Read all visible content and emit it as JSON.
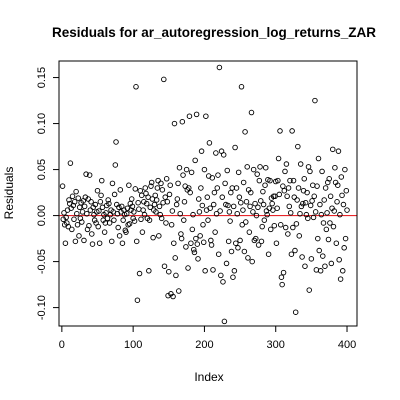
{
  "chart_data": {
    "type": "scatter",
    "title": "Residuals for ar_autoregression_log_returns_ZAR",
    "xlabel": "Index",
    "ylabel": "Residuals",
    "xlim": [
      -4,
      414
    ],
    "ylim": [
      -0.12,
      0.168
    ],
    "x_ticks": [
      0,
      100,
      200,
      300,
      400
    ],
    "y_ticks": [
      -0.1,
      -0.05,
      0.0,
      0.05,
      0.1,
      0.15
    ],
    "x_tick_labels": [
      "0",
      "100",
      "200",
      "300",
      "400"
    ],
    "y_tick_labels": [
      "-0.10",
      "-0.05",
      "0.00",
      "0.05",
      "0.10",
      "0.15"
    ],
    "grid": false,
    "reference_line": {
      "y": 0,
      "color": "#e8262b"
    },
    "marker": {
      "shape": "open-circle",
      "color": "#000000"
    },
    "points": [
      [
        1,
        0.032
      ],
      [
        2,
        -0.004
      ],
      [
        3,
        0.003
      ],
      [
        4,
        -0.01
      ],
      [
        5,
        -0.03
      ],
      [
        6,
        -0.002
      ],
      [
        7,
        -0.008
      ],
      [
        8,
        0.006
      ],
      [
        9,
        -0.012
      ],
      [
        10,
        0.017
      ],
      [
        11,
        0.013
      ],
      [
        12,
        0.057
      ],
      [
        13,
        0.008
      ],
      [
        14,
        -0.015
      ],
      [
        15,
        0.021
      ],
      [
        16,
        0.011
      ],
      [
        17,
        -0.004
      ],
      [
        18,
        0.015
      ],
      [
        19,
        -0.028
      ],
      [
        20,
        0.026
      ],
      [
        21,
        0.002
      ],
      [
        22,
        -0.01
      ],
      [
        23,
        0.019
      ],
      [
        24,
        -0.022
      ],
      [
        25,
        0.009
      ],
      [
        26,
        -0.003
      ],
      [
        27,
        0.014
      ],
      [
        28,
        -0.007
      ],
      [
        29,
        0.004
      ],
      [
        30,
        0.016
      ],
      [
        31,
        -0.027
      ],
      [
        32,
        0.01
      ],
      [
        33,
        0.02
      ],
      [
        34,
        0.045
      ],
      [
        35,
        0.002
      ],
      [
        36,
        -0.015
      ],
      [
        37,
        0.018
      ],
      [
        38,
        -0.011
      ],
      [
        39,
        0.044
      ],
      [
        40,
        0.006
      ],
      [
        41,
        0.015
      ],
      [
        42,
        -0.02
      ],
      [
        43,
        -0.031
      ],
      [
        44,
        0.009
      ],
      [
        45,
        0.001
      ],
      [
        46,
        -0.005
      ],
      [
        47,
        0.012
      ],
      [
        48,
        -0.008
      ],
      [
        49,
        0.004
      ],
      [
        50,
        0.027
      ],
      [
        51,
        -0.012
      ],
      [
        52,
        0.005
      ],
      [
        53,
        -0.03
      ],
      [
        54,
        0.015
      ],
      [
        55,
        0.022
      ],
      [
        56,
        0.038
      ],
      [
        57,
        0.009
      ],
      [
        58,
        -0.005
      ],
      [
        59,
        0.001
      ],
      [
        60,
        -0.018
      ],
      [
        61,
        -0.008
      ],
      [
        62,
        0.003
      ],
      [
        63,
        0.011
      ],
      [
        64,
        -0.003
      ],
      [
        65,
        0.017
      ],
      [
        66,
        0.013
      ],
      [
        67,
        -0.008
      ],
      [
        68,
        0.001
      ],
      [
        69,
        0.006
      ],
      [
        70,
        -0.028
      ],
      [
        71,
        0.035
      ],
      [
        72,
        0.004
      ],
      [
        73,
        -0.005
      ],
      [
        74,
        0.023
      ],
      [
        75,
        0.055
      ],
      [
        76,
        0.08
      ],
      [
        77,
        0.012
      ],
      [
        78,
        0.002
      ],
      [
        79,
        -0.013
      ],
      [
        80,
        0.009
      ],
      [
        81,
        -0.022
      ],
      [
        82,
        0.028
      ],
      [
        83,
        0.004
      ],
      [
        84,
        0.01
      ],
      [
        85,
        -0.03
      ],
      [
        86,
        -0.005
      ],
      [
        87,
        0.006
      ],
      [
        88,
        0.001
      ],
      [
        89,
        -0.016
      ],
      [
        90,
        -0.018
      ],
      [
        91,
        0.002
      ],
      [
        92,
        0.008
      ],
      [
        93,
        -0.01
      ],
      [
        94,
        0.033
      ],
      [
        95,
        -0.009
      ],
      [
        96,
        0.013
      ],
      [
        97,
        0.006
      ],
      [
        98,
        0.018
      ],
      [
        99,
        0.01
      ],
      [
        100,
        -0.003
      ],
      [
        101,
        0.004
      ],
      [
        102,
        -0.006
      ],
      [
        103,
        0.029
      ],
      [
        104,
        0.14
      ],
      [
        105,
        -0.028
      ],
      [
        106,
        -0.092
      ],
      [
        107,
        0.014
      ],
      [
        108,
        0.007
      ],
      [
        109,
        -0.063
      ],
      [
        110,
        0.027
      ],
      [
        111,
        -0.004
      ],
      [
        112,
        0.022
      ],
      [
        113,
        -0.018
      ],
      [
        114,
        0.006
      ],
      [
        115,
        0.015
      ],
      [
        116,
        0.001
      ],
      [
        117,
        0.03
      ],
      [
        118,
        0.024
      ],
      [
        119,
        0.013
      ],
      [
        120,
        -0.003
      ],
      [
        121,
        0.02
      ],
      [
        122,
        -0.06
      ],
      [
        123,
        -0.005
      ],
      [
        124,
        0.009
      ],
      [
        125,
        0.032
      ],
      [
        126,
        0.036
      ],
      [
        127,
        0.018
      ],
      [
        128,
        -0.024
      ],
      [
        129,
        0.006
      ],
      [
        130,
        0.012
      ],
      [
        131,
        0.022
      ],
      [
        132,
        0.004
      ],
      [
        133,
        0.017
      ],
      [
        134,
        0.03
      ],
      [
        135,
        0.038
      ],
      [
        136,
        -0.022
      ],
      [
        137,
        0.01
      ],
      [
        138,
        0.001
      ],
      [
        139,
        0.035
      ],
      [
        140,
        -0.003
      ],
      [
        141,
        0.028
      ],
      [
        142,
        0.014
      ],
      [
        143,
        0.148
      ],
      [
        144,
        -0.055
      ],
      [
        145,
        0.02
      ],
      [
        146,
        -0.008
      ],
      [
        147,
        0.04
      ],
      [
        148,
        0.015
      ],
      [
        149,
        -0.087
      ],
      [
        150,
        -0.061
      ],
      [
        151,
        0.023
      ],
      [
        152,
        0.033
      ],
      [
        153,
        -0.085
      ],
      [
        154,
        -0.01
      ],
      [
        155,
        0.005
      ],
      [
        156,
        -0.088
      ],
      [
        157,
        -0.03
      ],
      [
        158,
        0.1
      ],
      [
        159,
        -0.046
      ],
      [
        160,
        -0.065
      ],
      [
        161,
        0.012
      ],
      [
        162,
        0.018
      ],
      [
        163,
        0.035
      ],
      [
        164,
        -0.082
      ],
      [
        165,
        0.052
      ],
      [
        166,
        0.002
      ],
      [
        167,
        -0.02
      ],
      [
        168,
        -0.025
      ],
      [
        169,
        0.102
      ],
      [
        170,
        0.044
      ],
      [
        171,
        -0.005
      ],
      [
        172,
        0.015
      ],
      [
        173,
        0.032
      ],
      [
        174,
        -0.034
      ],
      [
        175,
        0.05
      ],
      [
        176,
        0.028
      ],
      [
        177,
        -0.057
      ],
      [
        178,
        0.03
      ],
      [
        179,
        0.108
      ],
      [
        180,
        0.025
      ],
      [
        181,
        -0.03
      ],
      [
        182,
        0.047
      ],
      [
        183,
        -0.015
      ],
      [
        184,
        0.001
      ],
      [
        185,
        -0.037
      ],
      [
        186,
        -0.04
      ],
      [
        187,
        0.06
      ],
      [
        188,
        -0.025
      ],
      [
        189,
        0.11
      ],
      [
        190,
        -0.031
      ],
      [
        191,
        -0.047
      ],
      [
        192,
        0.018
      ],
      [
        193,
        0.004
      ],
      [
        194,
        -0.022
      ],
      [
        195,
        0.03
      ],
      [
        196,
        0.07
      ],
      [
        197,
        0.011
      ],
      [
        198,
        -0.01
      ],
      [
        199,
        -0.029
      ],
      [
        200,
        0.05
      ],
      [
        201,
        -0.06
      ],
      [
        202,
        0.108
      ],
      [
        203,
        0.006
      ],
      [
        204,
        0.02
      ],
      [
        205,
        -0.005
      ],
      [
        206,
        0.043
      ],
      [
        207,
        0.079
      ],
      [
        208,
        0.008
      ],
      [
        209,
        -0.027
      ],
      [
        210,
        -0.032
      ],
      [
        211,
        0.041
      ],
      [
        212,
        -0.059
      ],
      [
        213,
        0.012
      ],
      [
        214,
        0.025
      ],
      [
        215,
        -0.018
      ],
      [
        216,
        0.068
      ],
      [
        217,
        0.002
      ],
      [
        218,
        0.03
      ],
      [
        219,
        0.044
      ],
      [
        220,
        -0.042
      ],
      [
        221,
        0.161
      ],
      [
        222,
        0.005
      ],
      [
        223,
        -0.065
      ],
      [
        224,
        0.07
      ],
      [
        225,
        0.02
      ],
      [
        226,
        -0.072
      ],
      [
        227,
        0.066
      ],
      [
        228,
        -0.115
      ],
      [
        229,
        0.035
      ],
      [
        230,
        0.012
      ],
      [
        231,
        -0.052
      ],
      [
        232,
        0.049
      ],
      [
        233,
        0.011
      ],
      [
        234,
        -0.028
      ],
      [
        235,
        0.004
      ],
      [
        236,
        -0.006
      ],
      [
        237,
        0.025
      ],
      [
        238,
        -0.039
      ],
      [
        239,
        0.03
      ],
      [
        240,
        -0.067
      ],
      [
        241,
        0.01
      ],
      [
        242,
        -0.06
      ],
      [
        243,
        0.074
      ],
      [
        244,
        -0.03
      ],
      [
        245,
        0.03
      ],
      [
        246,
        0.002
      ],
      [
        247,
        -0.035
      ],
      [
        248,
        0.047
      ],
      [
        249,
        0.02
      ],
      [
        250,
        -0.027
      ],
      [
        251,
        0.014
      ],
      [
        252,
        0.14
      ],
      [
        253,
        -0.01
      ],
      [
        254,
        0.006
      ],
      [
        255,
        0.036
      ],
      [
        256,
        -0.039
      ],
      [
        257,
        0.091
      ],
      [
        258,
        -0.007
      ],
      [
        259,
        0.015
      ],
      [
        260,
        0.053
      ],
      [
        261,
        -0.046
      ],
      [
        262,
        0.028
      ],
      [
        263,
        -0.018
      ],
      [
        264,
        0.01
      ],
      [
        265,
        0.025
      ],
      [
        266,
        0.112
      ],
      [
        267,
        -0.05
      ],
      [
        268,
        0.004
      ],
      [
        269,
        0.05
      ],
      [
        270,
        -0.027
      ],
      [
        271,
        0.013
      ],
      [
        272,
        -0.025
      ],
      [
        273,
        0.0
      ],
      [
        274,
        0.045
      ],
      [
        275,
        0.009
      ],
      [
        276,
        -0.032
      ],
      [
        277,
        0.038
      ],
      [
        278,
        0.053
      ],
      [
        279,
        0.016
      ],
      [
        280,
        -0.028
      ],
      [
        281,
        -0.012
      ],
      [
        282,
        0.026
      ],
      [
        283,
        0.012
      ],
      [
        284,
        -0.005
      ],
      [
        285,
        0.033
      ],
      [
        286,
        0.052
      ],
      [
        287,
        0.005
      ],
      [
        288,
        0.001
      ],
      [
        289,
        0.039
      ],
      [
        290,
        -0.042
      ],
      [
        291,
        0.008
      ],
      [
        292,
        0.038
      ],
      [
        293,
        -0.015
      ],
      [
        294,
        0.019
      ],
      [
        295,
        0.013
      ],
      [
        296,
        0.006
      ],
      [
        297,
        0.021
      ],
      [
        298,
        -0.011
      ],
      [
        299,
        0.021
      ],
      [
        300,
        0.037
      ],
      [
        301,
        -0.03
      ],
      [
        302,
        0.008
      ],
      [
        303,
        0.038
      ],
      [
        304,
        0.062
      ],
      [
        305,
        0.023
      ],
      [
        306,
        0.092
      ],
      [
        307,
        -0.01
      ],
      [
        308,
        -0.067
      ],
      [
        309,
        -0.075
      ],
      [
        310,
        0.032
      ],
      [
        311,
        -0.062
      ],
      [
        312,
        0.027
      ],
      [
        313,
        0.048
      ],
      [
        314,
        -0.013
      ],
      [
        315,
        0.056
      ],
      [
        316,
        0.021
      ],
      [
        317,
        -0.02
      ],
      [
        318,
        0.03
      ],
      [
        319,
        0.01
      ],
      [
        320,
        0.038
      ],
      [
        321,
        0.003
      ],
      [
        322,
        -0.042
      ],
      [
        323,
        0.092
      ],
      [
        324,
        -0.013
      ],
      [
        325,
        0.038
      ],
      [
        326,
        0.02
      ],
      [
        327,
        -0.038
      ],
      [
        328,
        -0.105
      ],
      [
        329,
        -0.009
      ],
      [
        330,
        0.017
      ],
      [
        331,
        0.075
      ],
      [
        332,
        0.03
      ],
      [
        333,
        -0.022
      ],
      [
        334,
        0.002
      ],
      [
        335,
        0.056
      ],
      [
        336,
        0.01
      ],
      [
        337,
        -0.045
      ],
      [
        338,
        0.013
      ],
      [
        339,
        0.027
      ],
      [
        340,
        0.04
      ],
      [
        341,
        -0.055
      ],
      [
        342,
        0.014
      ],
      [
        343,
        0.001
      ],
      [
        344,
        0.025
      ],
      [
        345,
        -0.003
      ],
      [
        346,
        0.053
      ],
      [
        347,
        -0.081
      ],
      [
        348,
        0.048
      ],
      [
        349,
        0.011
      ],
      [
        350,
        -0.047
      ],
      [
        351,
        0.016
      ],
      [
        352,
        0.033
      ],
      [
        353,
        -0.002
      ],
      [
        354,
        0.021
      ],
      [
        355,
        0.125
      ],
      [
        356,
        0.004
      ],
      [
        357,
        -0.059
      ],
      [
        358,
        0.032
      ],
      [
        359,
        -0.025
      ],
      [
        360,
        0.062
      ],
      [
        361,
        -0.038
      ],
      [
        362,
        0.012
      ],
      [
        363,
        -0.06
      ],
      [
        364,
        0.001
      ],
      [
        365,
        0.048
      ],
      [
        366,
        -0.044
      ],
      [
        367,
        -0.008
      ],
      [
        368,
        0.017
      ],
      [
        369,
        -0.055
      ],
      [
        370,
        0.03
      ],
      [
        371,
        -0.015
      ],
      [
        372,
        0.003
      ],
      [
        373,
        0.036
      ],
      [
        374,
        -0.026
      ],
      [
        375,
        0.04
      ],
      [
        376,
        -0.008
      ],
      [
        377,
        0.021
      ],
      [
        378,
        -0.052
      ],
      [
        379,
        0.008
      ],
      [
        380,
        0.072
      ],
      [
        381,
        -0.012
      ],
      [
        382,
        0.005
      ],
      [
        383,
        0.052
      ],
      [
        384,
        0.036
      ],
      [
        385,
        -0.03
      ],
      [
        386,
        0.015
      ],
      [
        387,
        0.033
      ],
      [
        388,
        0.07
      ],
      [
        389,
        -0.048
      ],
      [
        390,
        0.001
      ],
      [
        391,
        -0.069
      ],
      [
        392,
        0.042
      ],
      [
        393,
        0.022
      ],
      [
        394,
        -0.06
      ],
      [
        395,
        0.012
      ],
      [
        396,
        -0.035
      ],
      [
        397,
        0.05
      ],
      [
        398,
        -0.025
      ],
      [
        399,
        0.027
      ],
      [
        400,
        0.006
      ]
    ]
  }
}
